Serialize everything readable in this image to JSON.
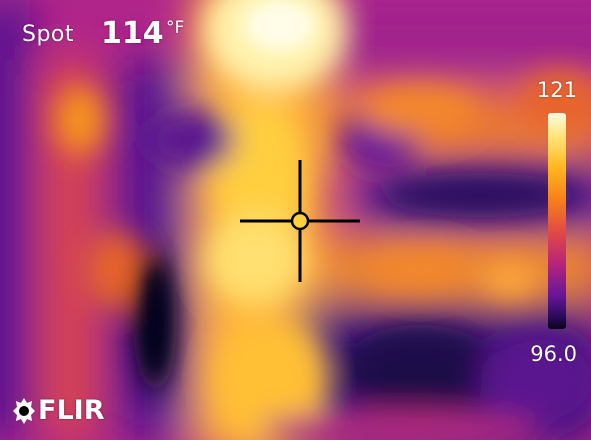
{
  "spot": {
    "label": "Spot",
    "value": "114",
    "unit": "°F"
  },
  "scale": {
    "max": "121",
    "min": "96.0"
  },
  "brand": {
    "name": "FLIR"
  },
  "palette": {
    "name": "iron",
    "hot": "#fffbe0",
    "warm": "#ffb820",
    "mid": "#e24a46",
    "cool": "#6a1798",
    "cold": "#08051a"
  }
}
